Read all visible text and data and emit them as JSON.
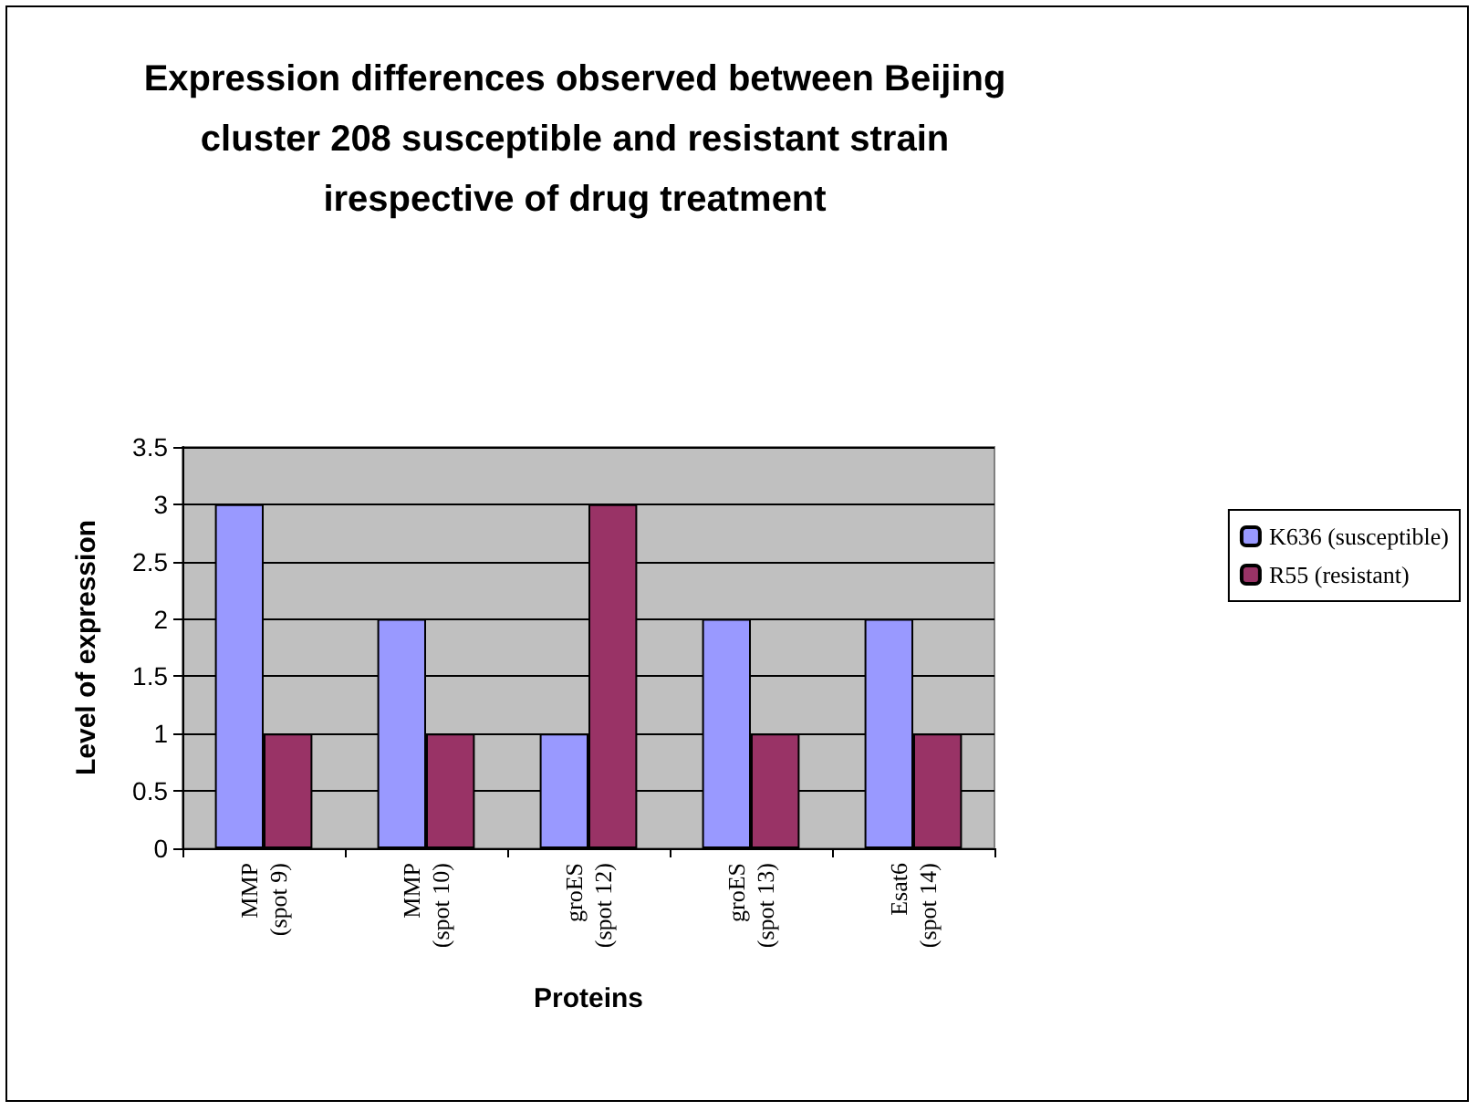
{
  "chart_data": {
    "type": "bar",
    "title": "Expression differences observed between Beijing\ncluster 208 susceptible and resistant strain\nirespective of drug treatment",
    "xlabel": "Proteins",
    "ylabel": "Level of expression",
    "categories": [
      "MMP\n(spot 9)",
      "MMP\n(spot 10)",
      "groES\n(spot 12)",
      "groES\n(spot 13)",
      "Esat6\n(spot 14)"
    ],
    "series": [
      {
        "name": "K636 (susceptible)",
        "color": "#9999ff",
        "values": [
          3,
          2,
          1,
          2,
          2
        ]
      },
      {
        "name": "R55 (resistant)",
        "color": "#993366",
        "values": [
          1,
          1,
          3,
          1,
          1
        ]
      }
    ],
    "ylim": [
      0,
      3.5
    ],
    "yticks": [
      0,
      0.5,
      1,
      1.5,
      2,
      2.5,
      3,
      3.5
    ],
    "grid": "y",
    "legend": "right"
  }
}
